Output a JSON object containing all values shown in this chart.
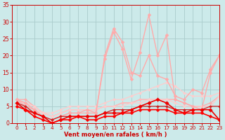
{
  "xlabel": "Vent moyen/en rafales ( km/h )",
  "background_color": "#cceaea",
  "grid_color": "#aacccc",
  "text_color": "#cc0000",
  "xlim": [
    -0.5,
    23
  ],
  "ylim": [
    0,
    35
  ],
  "yticks": [
    0,
    5,
    10,
    15,
    20,
    25,
    30,
    35
  ],
  "xticks": [
    0,
    1,
    2,
    3,
    4,
    5,
    6,
    7,
    8,
    9,
    10,
    11,
    12,
    13,
    14,
    15,
    16,
    17,
    18,
    19,
    20,
    21,
    22,
    23
  ],
  "series": [
    {
      "x": [
        0,
        1,
        2,
        3,
        4,
        5,
        6,
        7,
        8,
        9,
        10,
        11,
        12,
        13,
        14,
        15,
        16,
        17,
        18,
        19,
        20,
        21,
        22,
        23
      ],
      "y": [
        7,
        7,
        5,
        3,
        2,
        3,
        4,
        4,
        4,
        4,
        5,
        5,
        6,
        6,
        7,
        7,
        7,
        7,
        7,
        6,
        5,
        5,
        6,
        8
      ],
      "color": "#ffaaaa",
      "lw": 0.9,
      "marker": "D",
      "ms": 2.0
    },
    {
      "x": [
        0,
        1,
        2,
        3,
        4,
        5,
        6,
        7,
        8,
        9,
        10,
        11,
        12,
        13,
        14,
        15,
        16,
        17,
        18,
        19,
        20,
        21,
        22,
        23
      ],
      "y": [
        7,
        6,
        5,
        3,
        2,
        3,
        4,
        4,
        4,
        4,
        5,
        5,
        6,
        6,
        7,
        7,
        7,
        7,
        7,
        6,
        5,
        5,
        5,
        8
      ],
      "color": "#ffbbbb",
      "lw": 0.9,
      "marker": "D",
      "ms": 2.0
    },
    {
      "x": [
        0,
        1,
        2,
        3,
        4,
        5,
        6,
        7,
        8,
        9,
        10,
        11,
        12,
        13,
        14,
        15,
        16,
        17,
        18,
        19,
        20,
        21,
        22,
        23
      ],
      "y": [
        6,
        6,
        4,
        3,
        2,
        3,
        4,
        4,
        4,
        4,
        5,
        5,
        5,
        6,
        6,
        7,
        7,
        7,
        6,
        5,
        5,
        5,
        5,
        8
      ],
      "color": "#ffcccc",
      "lw": 0.9,
      "marker": "D",
      "ms": 2.0
    },
    {
      "x": [
        0,
        1,
        2,
        3,
        4,
        5,
        6,
        7,
        8,
        9,
        10,
        11,
        12,
        13,
        14,
        15,
        16,
        17,
        18,
        19,
        20,
        21,
        22,
        23
      ],
      "y": [
        7,
        6,
        5,
        3,
        3,
        4,
        5,
        5,
        5,
        5,
        6,
        7,
        7,
        8,
        9,
        10,
        11,
        12,
        11,
        9,
        8,
        8,
        8,
        9
      ],
      "color": "#ffcccc",
      "lw": 0.9,
      "marker": "D",
      "ms": 2.0
    },
    {
      "x": [
        0,
        1,
        2,
        3,
        4,
        5,
        6,
        7,
        8,
        9,
        10,
        11,
        12,
        13,
        14,
        15,
        16,
        17,
        18,
        19,
        20,
        21,
        22,
        23
      ],
      "y": [
        7,
        6,
        4,
        2,
        1,
        2,
        3,
        3,
        4,
        3,
        20,
        28,
        24,
        15,
        14,
        20,
        14,
        13,
        8,
        7,
        10,
        9,
        16,
        20
      ],
      "color": "#ffaaaa",
      "lw": 1.0,
      "marker": "D",
      "ms": 2.5
    },
    {
      "x": [
        0,
        1,
        2,
        3,
        4,
        5,
        6,
        7,
        8,
        9,
        10,
        11,
        12,
        13,
        14,
        15,
        16,
        17,
        18,
        19,
        20,
        21,
        22,
        23
      ],
      "y": [
        7,
        5,
        4,
        2,
        1,
        2,
        3,
        3,
        3,
        3,
        19,
        27,
        22,
        13,
        21,
        32,
        20,
        26,
        7,
        6,
        5,
        4,
        15,
        20
      ],
      "color": "#ffaaaa",
      "lw": 1.0,
      "marker": "D",
      "ms": 2.5
    },
    {
      "x": [
        0,
        1,
        2,
        3,
        4,
        5,
        6,
        7,
        8,
        9,
        10,
        11,
        12,
        13,
        14,
        15,
        16,
        17,
        18,
        19,
        20,
        21,
        22,
        23
      ],
      "y": [
        6,
        5,
        3,
        2,
        1,
        2,
        2,
        2,
        2,
        2,
        3,
        4,
        4,
        4,
        5,
        5,
        5,
        5,
        4,
        4,
        4,
        4,
        5,
        5
      ],
      "color": "#cc2222",
      "lw": 0.9,
      "marker": "D",
      "ms": 2.0
    },
    {
      "x": [
        0,
        1,
        2,
        3,
        4,
        5,
        6,
        7,
        8,
        9,
        10,
        11,
        12,
        13,
        14,
        15,
        16,
        17,
        18,
        19,
        20,
        21,
        22,
        23
      ],
      "y": [
        6,
        4,
        3,
        2,
        0,
        1,
        2,
        2,
        2,
        2,
        3,
        3,
        3,
        4,
        5,
        6,
        7,
        6,
        4,
        3,
        4,
        4,
        4,
        1
      ],
      "color": "#ee0000",
      "lw": 1.2,
      "marker": "D",
      "ms": 2.8
    },
    {
      "x": [
        0,
        1,
        2,
        3,
        4,
        5,
        6,
        7,
        8,
        9,
        10,
        11,
        12,
        13,
        14,
        15,
        16,
        17,
        18,
        19,
        20,
        21,
        22,
        23
      ],
      "y": [
        5,
        4,
        2,
        1,
        0,
        1,
        1,
        2,
        1,
        1,
        2,
        2,
        3,
        3,
        4,
        4,
        4,
        4,
        3,
        3,
        3,
        3,
        2,
        1
      ],
      "color": "#ff0000",
      "lw": 1.2,
      "marker": "D",
      "ms": 2.5
    }
  ]
}
